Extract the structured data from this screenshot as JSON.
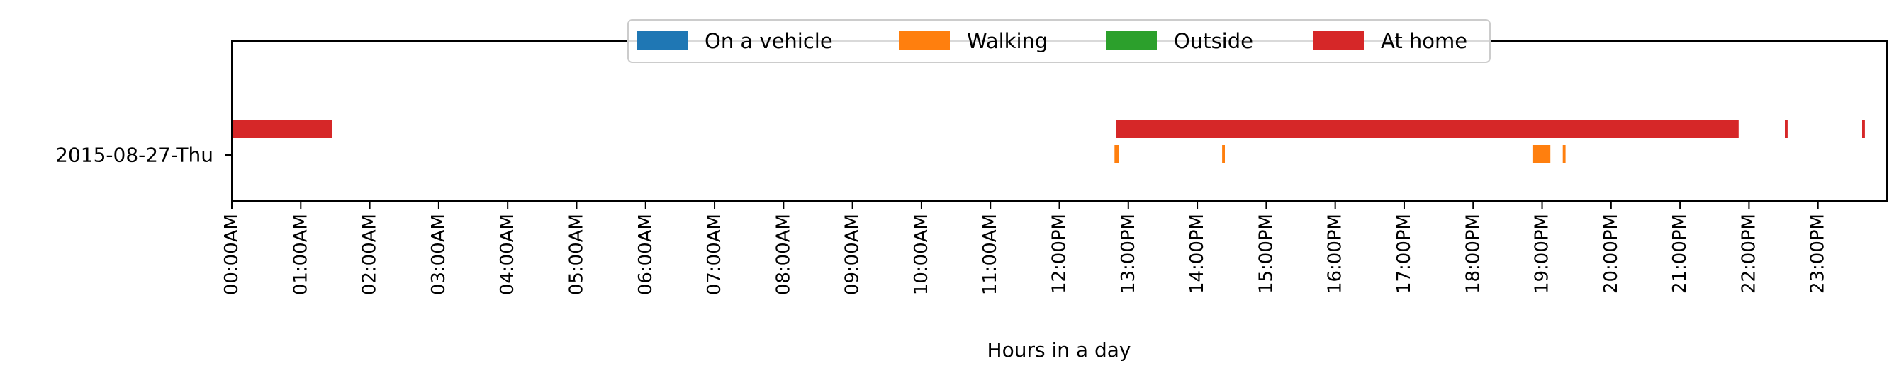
{
  "chart_data": {
    "type": "timeline",
    "xlabel": "Hours in a day",
    "x_unit": "hours",
    "xlim": [
      0,
      24
    ],
    "ticks": [
      "00:00AM",
      "01:00AM",
      "02:00AM",
      "03:00AM",
      "04:00AM",
      "05:00AM",
      "06:00AM",
      "07:00AM",
      "08:00AM",
      "09:00AM",
      "10:00AM",
      "11:00AM",
      "12:00PM",
      "13:00PM",
      "14:00PM",
      "15:00PM",
      "16:00PM",
      "17:00PM",
      "18:00PM",
      "19:00PM",
      "20:00PM",
      "21:00PM",
      "22:00PM",
      "23:00PM"
    ],
    "row_label": "2015-08-27-Thu",
    "legend_position": "top-center",
    "series": [
      {
        "name": "On a vehicle",
        "color": "#1f77b4",
        "intervals": []
      },
      {
        "name": "Walking",
        "color": "#ff7f0e",
        "intervals": [
          [
            12.8,
            12.86
          ],
          [
            14.36,
            14.4
          ],
          [
            18.86,
            19.12
          ],
          [
            19.3,
            19.34
          ]
        ]
      },
      {
        "name": "Outside",
        "color": "#2ca02c",
        "intervals": []
      },
      {
        "name": "At home",
        "color": "#d62728",
        "intervals": [
          [
            0.0,
            1.45
          ],
          [
            12.82,
            21.85
          ],
          [
            22.52,
            22.56
          ],
          [
            23.64,
            23.68
          ]
        ]
      }
    ]
  }
}
